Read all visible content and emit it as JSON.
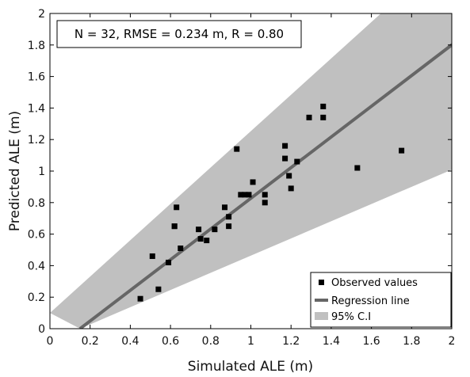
{
  "chart_data": {
    "type": "scatter",
    "title": "",
    "xlabel": "Simulated ALE (m)",
    "ylabel": "Predicted ALE (m)",
    "xlim": [
      0,
      2
    ],
    "ylim": [
      0,
      2
    ],
    "xticks": [
      "0",
      "0.2",
      "0.4",
      "0.6",
      "0.8",
      "1",
      "1.2",
      "1.4",
      "1.6",
      "1.8",
      "2"
    ],
    "yticks": [
      "0",
      "0.2",
      "0.4",
      "0.6",
      "0.8",
      "1",
      "1.2",
      "1.4",
      "1.6",
      "1.8",
      "2"
    ],
    "annotation": "N = 32, RMSE = 0.234 m, R = 0.80",
    "series": [
      {
        "name": "Observed values",
        "x": [
          0.45,
          0.51,
          0.54,
          0.59,
          0.62,
          0.63,
          0.65,
          0.74,
          0.75,
          0.78,
          0.82,
          0.87,
          0.89,
          0.89,
          0.93,
          0.95,
          0.97,
          0.99,
          1.01,
          1.07,
          1.07,
          1.17,
          1.17,
          1.19,
          1.2,
          1.23,
          1.29,
          1.36,
          1.36,
          1.53,
          1.75,
          0.62
        ],
        "y": [
          0.19,
          0.46,
          0.25,
          0.42,
          0.65,
          0.77,
          0.51,
          0.63,
          0.57,
          0.56,
          0.63,
          0.77,
          0.71,
          0.65,
          1.14,
          0.85,
          0.85,
          0.85,
          0.93,
          0.85,
          0.8,
          1.16,
          1.08,
          0.97,
          0.89,
          1.06,
          1.34,
          1.34,
          1.41,
          1.02,
          1.13,
          0.65
        ]
      }
    ],
    "regression_line": {
      "name": "Regression line",
      "x": [
        0.15,
        2.02
      ],
      "y": [
        0.0,
        1.82
      ]
    },
    "confidence_band": {
      "name": "95% C.I",
      "upper": {
        "x": [
          0,
          2.02
        ],
        "y": [
          0.1,
          2.43
        ]
      },
      "lower": {
        "x": [
          0.15,
          2.02
        ],
        "y": [
          0.0,
          1.02
        ]
      }
    },
    "legend": {
      "position": "bottom-right",
      "entries": [
        "Observed values",
        "Regression line",
        "95% C.I"
      ]
    },
    "grid": false,
    "colors": {
      "band": "#c0c0c0",
      "line": "#666666",
      "marker": "#000000"
    }
  }
}
